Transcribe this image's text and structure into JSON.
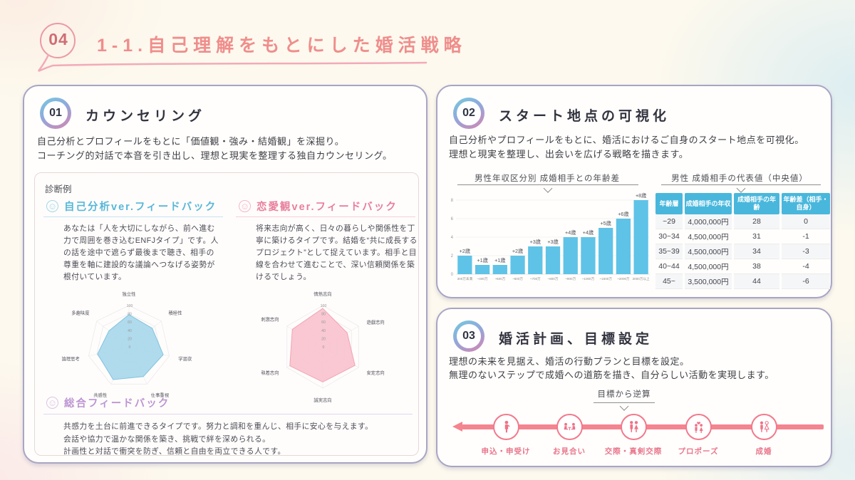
{
  "header": {
    "badge": "04",
    "title": "1-1.自己理解をもとにした婚活戦略"
  },
  "colors": {
    "accent_pink": "#ef8e8c",
    "underline_pink": "#f2aab8",
    "card_border": "#a9a5c4",
    "feedback_blue": "#58b7d8",
    "feedback_pink": "#e87f9c",
    "feedback_purple": "#bd95d2",
    "bar_blue": "#5fc3e7",
    "table_header_blue": "#49b7dc",
    "timeline_pink": "#f2798b",
    "radar_blue_fill": "#a9d8ec",
    "radar_pink_fill": "#f9c3ce"
  },
  "counseling_card": {
    "badge": "01",
    "title": "カウンセリング",
    "description": [
      "自己分析とプロフィールをもとに「価値観・強み・結婚観」を深掘り。",
      "コーチング的対話で本音を引き出し、理想と現実を整理する独自カウンセリング。"
    ],
    "diagnosis_label": "診断例",
    "self_feedback": {
      "icon": "smiley-icon",
      "title": "自己分析ver.フィードバック",
      "body": "あなたは「人を大切にしながら、前へ進む力で周囲を巻き込むENFJタイプ」です。人の話を途中で遮らず最後まで聴き、相手の尊重を軸に建設的な議論へつなげる姿勢が根付いています。"
    },
    "love_feedback": {
      "icon": "smiley-icon",
      "title": "恋愛観ver.フィードバック",
      "body": "将来志向が高く、日々の暮らしや関係性を丁寧に築けるタイプです。結婚を“共に成長するプロジェクト”として捉えています。相手と目線を合わせて進むことで、深い信頼関係を築けるでしょう。"
    },
    "total_feedback": {
      "icon": "smiley-icon",
      "title": "総合フィードバック",
      "body": [
        "共感力を土台に前進できるタイプです。努力と調和を重んじ、相手に安心を与えます。",
        "会話や協力で温かな関係を築き、挑戦で絆を深められる。",
        "計画性と対話で衝突を防ぎ、信頼と自由を両立できる人です。"
      ]
    }
  },
  "visualization_card": {
    "badge": "02",
    "title": "スタート地点の可視化",
    "description": [
      "自己分析やプロフィールをもとに、婚活におけるご自身のスタート地点を可視化。",
      "理想と現実を整理し、出会いを広げる戦略を描きます。"
    ]
  },
  "plan_card": {
    "badge": "03",
    "title": "婚活計画、目標設定",
    "description": [
      "理想の未来を見据え、婚活の行動プランと目標を設定。",
      "無理のないステップで成婚への道筋を描き、自分らしい活動を実現します。"
    ],
    "reverse_label": "目標から逆算",
    "steps": [
      {
        "label": "申込・申受け",
        "icon": "applicant-icon"
      },
      {
        "label": "お見合い",
        "icon": "meeting-icon"
      },
      {
        "label": "交際・真剣交際",
        "icon": "couple-icon"
      },
      {
        "label": "プロポーズ",
        "icon": "propose-icon"
      },
      {
        "label": "成婚",
        "icon": "marriage-icon"
      }
    ]
  },
  "chart_data": [
    {
      "type": "radar",
      "name": "self-analysis-radar",
      "labels": [
        "独立性",
        "積極性",
        "学習欲",
        "仕事重視",
        "共感性",
        "論理思考",
        "多趣味度"
      ],
      "values": [
        78,
        72,
        85,
        80,
        88,
        78,
        62
      ],
      "ticks": [
        0,
        20,
        40,
        60,
        80,
        100
      ],
      "max": 100,
      "fill": "#a9d8ec",
      "stroke": "#7fc3e0"
    },
    {
      "type": "radar",
      "name": "love-view-radar",
      "labels": [
        "情熱志向",
        "遊戯志向",
        "安定志向",
        "誠実志向",
        "執着志向",
        "刺激志向"
      ],
      "values": [
        93,
        68,
        90,
        85,
        92,
        85
      ],
      "ticks": [
        0,
        20,
        40,
        60,
        80,
        100
      ],
      "max": 100,
      "fill": "#f9c3ce",
      "stroke": "#f3a3b4"
    },
    {
      "type": "bar",
      "title": "男性年収区分別 成婚相手との年齢差",
      "categories": [
        "300万未満",
        "~400万",
        "~500万",
        "~600万",
        "~700万",
        "~800万",
        "~900万",
        "~1000万",
        "~1500万",
        "~2000万",
        "2000万以上"
      ],
      "values": [
        2,
        1,
        1,
        2,
        3,
        3,
        4,
        4,
        5,
        6,
        8
      ],
      "bar_labels": [
        "+2歳",
        "+1歳",
        "+1歳",
        "+2歳",
        "+3歳",
        "+3歳",
        "+4歳",
        "+4歳",
        "+5歳",
        "+6歳",
        "+8歳"
      ],
      "ylim": [
        0,
        8
      ],
      "yticks": [
        0,
        2,
        4,
        6,
        8
      ],
      "grid": true,
      "color": "#5fc3e7"
    },
    {
      "type": "table",
      "title": "男性 成婚相手の代表値（中央値）",
      "headers": [
        "年齢層",
        "成婚相手の年収",
        "成婚相手の年齢",
        "年齢差（相手・自身）"
      ],
      "rows": [
        [
          "~29",
          "4,000,000円",
          "28",
          "0"
        ],
        [
          "30~34",
          "4,500,000円",
          "31",
          "-1"
        ],
        [
          "35~39",
          "4,500,000円",
          "34",
          "-3"
        ],
        [
          "40~44",
          "4,500,000円",
          "38",
          "-4"
        ],
        [
          "45~",
          "3,500,000円",
          "44",
          "-6"
        ]
      ]
    }
  ]
}
